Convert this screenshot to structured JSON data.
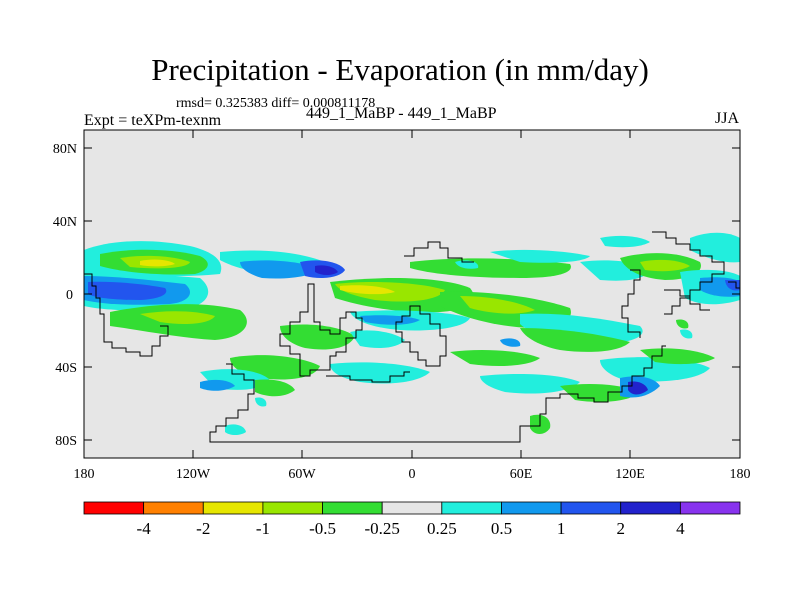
{
  "title": "Precipitation - Evaporation (in mm/day)",
  "stats": "rmsd= 0.325383  diff= 0.000811178",
  "experiment": "Expt = teXPm-texnm",
  "center_label": "449_1_MaBP - 449_1_MaBP",
  "season": "JJA",
  "axes": {
    "lat_ticks": [
      {
        "value": 80,
        "label": "80N"
      },
      {
        "value": 40,
        "label": "40N"
      },
      {
        "value": 0,
        "label": "0"
      },
      {
        "value": -40,
        "label": "40S"
      },
      {
        "value": -80,
        "label": "80S"
      }
    ],
    "lon_ticks": [
      {
        "value": -180,
        "label": "180"
      },
      {
        "value": -120,
        "label": "120W"
      },
      {
        "value": -60,
        "label": "60W"
      },
      {
        "value": 0,
        "label": "0"
      },
      {
        "value": 60,
        "label": "60E"
      },
      {
        "value": 120,
        "label": "120E"
      },
      {
        "value": 180,
        "label": "180"
      }
    ],
    "lon_range": [
      -180,
      180
    ],
    "lat_range": [
      -90,
      90
    ]
  },
  "colorbar": {
    "colors": [
      "#ff0000",
      "#ff8000",
      "#e6e600",
      "#99e600",
      "#33dd33",
      "#e6e6e6",
      "#22eedd",
      "#1199ee",
      "#2255ee",
      "#2222cc",
      "#8833ee"
    ],
    "labels": [
      "-4",
      "-2",
      "-1",
      "-0.5",
      "-0.25",
      "0.25",
      "0.5",
      "1",
      "2",
      "4"
    ]
  },
  "colors": {
    "background": "#e6e6e6",
    "coastline": "#000000"
  }
}
